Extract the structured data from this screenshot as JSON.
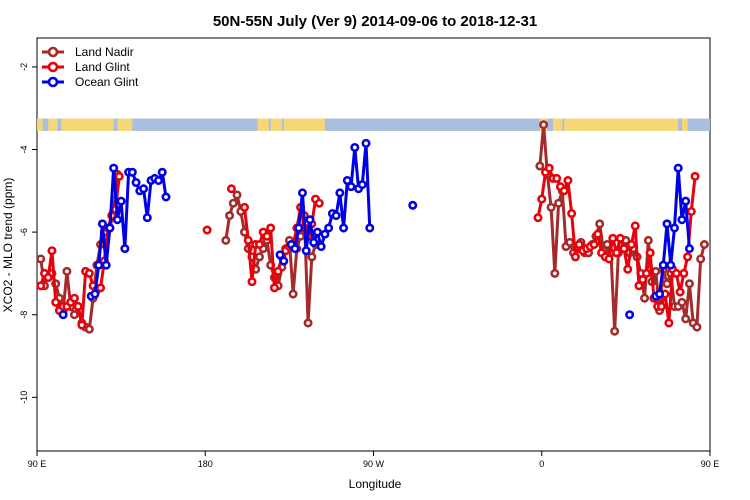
{
  "chart_data": {
    "type": "line",
    "title": "50N-55N July (Ver 9)   2014-09-06 to 2018-12-31",
    "xlabel": "Longitude",
    "ylabel": "XCO2 - MLO trend (ppm)",
    "xlim": [
      90,
      450
    ],
    "ylim": [
      -11.3,
      -1.3
    ],
    "xticks": [
      {
        "value": 90,
        "label": "90 E"
      },
      {
        "value": 180,
        "label": "180"
      },
      {
        "value": 270,
        "label": "90 W"
      },
      {
        "value": 360,
        "label": "0"
      },
      {
        "value": 450,
        "label": "90 E"
      },
      {
        "value": 540,
        "label": "180"
      }
    ],
    "yticks": [
      {
        "value": -2,
        "label": "-2"
      },
      {
        "value": -4,
        "label": "-4"
      },
      {
        "value": -6,
        "label": "-6"
      },
      {
        "value": -8,
        "label": "-8"
      },
      {
        "value": -10,
        "label": "-10"
      }
    ],
    "legend_position": "top-left",
    "land_mask_band": {
      "y_range": [
        -3.55,
        -3.25
      ],
      "land_color": "#f5d77a",
      "ocean_color": "#a9bfde"
    },
    "series": [
      {
        "name": "Land Nadir",
        "color": "#a52a2a",
        "segments": [
          [
            [
              92,
              -6.65
            ],
            [
              94,
              -7.3
            ],
            [
              96,
              -7.05
            ],
            [
              98,
              -7.0
            ],
            [
              100,
              -7.25
            ],
            [
              102,
              -7.6
            ],
            [
              104,
              -7.9
            ],
            [
              106,
              -6.95
            ],
            [
              108,
              -7.8
            ],
            [
              110,
              -8.0
            ],
            [
              112,
              -7.8
            ],
            [
              114,
              -8.2
            ],
            [
              116,
              -8.3
            ],
            [
              118,
              -8.35
            ],
            [
              120,
              -7.6
            ],
            [
              122,
              -6.8
            ],
            [
              124,
              -6.3
            ],
            [
              126,
              -6.0
            ]
          ],
          [
            [
              129,
              -5.9
            ],
            [
              131,
              -5.5
            ],
            [
              133,
              -4.6
            ]
          ],
          [
            [
              191,
              -6.2
            ],
            [
              193,
              -5.6
            ],
            [
              195,
              -5.3
            ],
            [
              197,
              -5.1
            ],
            [
              199,
              -5.5
            ],
            [
              201,
              -6.0
            ],
            [
              203,
              -6.4
            ],
            [
              205,
              -6.6
            ],
            [
              207,
              -6.9
            ],
            [
              209,
              -6.6
            ],
            [
              211,
              -6.4
            ],
            [
              213,
              -6.2
            ],
            [
              215,
              -6.8
            ],
            [
              217,
              -7.1
            ],
            [
              219,
              -7.3
            ],
            [
              221,
              -6.85
            ],
            [
              223,
              -6.4
            ],
            [
              225,
              -6.2
            ],
            [
              227,
              -7.5
            ],
            [
              229,
              -6.4
            ],
            [
              231,
              -6.1
            ],
            [
              233,
              -5.6
            ],
            [
              235,
              -8.2
            ],
            [
              237,
              -6.6
            ],
            [
              239,
              -6.3
            ]
          ],
          [
            [
              359,
              -4.4
            ],
            [
              361,
              -3.4
            ],
            [
              363,
              -4.6
            ],
            [
              365,
              -5.4
            ],
            [
              367,
              -7.0
            ],
            [
              369,
              -5.3
            ],
            [
              371,
              -5.0
            ],
            [
              373,
              -6.35
            ],
            [
              375,
              -6.25
            ],
            [
              377,
              -6.5
            ],
            [
              379,
              -6.4
            ],
            [
              381,
              -6.25
            ],
            [
              383,
              -6.5
            ],
            [
              385,
              -6.5
            ],
            [
              387,
              -6.3
            ],
            [
              389,
              -6.1
            ],
            [
              391,
              -5.8
            ],
            [
              393,
              -6.45
            ],
            [
              395,
              -6.3
            ],
            [
              397,
              -6.5
            ],
            [
              399,
              -8.4
            ],
            [
              401,
              -6.5
            ],
            [
              403,
              -6.3
            ],
            [
              405,
              -6.2
            ],
            [
              407,
              -6.5
            ],
            [
              409,
              -6.4
            ],
            [
              411,
              -6.6
            ],
            [
              413,
              -7.0
            ],
            [
              415,
              -7.6
            ],
            [
              417,
              -6.2
            ],
            [
              419,
              -7.2
            ],
            [
              421,
              -6.95
            ],
            [
              423,
              -7.9
            ],
            [
              425,
              -6.9
            ],
            [
              427,
              -7.25
            ],
            [
              429,
              -7.0
            ],
            [
              431,
              -7.8
            ],
            [
              433,
              -7.8
            ],
            [
              435,
              -7.7
            ],
            [
              437,
              -8.1
            ],
            [
              439,
              -7.25
            ],
            [
              441,
              -8.2
            ],
            [
              443,
              -8.3
            ],
            [
              445,
              -6.65
            ],
            [
              447,
              -6.3
            ]
          ]
        ]
      },
      {
        "name": "Land Glint",
        "color": "#e8000b",
        "segments": [
          [
            [
              92,
              -7.3
            ],
            [
              94,
              -7.0
            ],
            [
              96,
              -7.1
            ],
            [
              98,
              -6.45
            ],
            [
              100,
              -7.7
            ],
            [
              102,
              -7.9
            ],
            [
              104,
              -7.8
            ],
            [
              106,
              -7.8
            ],
            [
              108,
              -7.7
            ],
            [
              110,
              -7.6
            ],
            [
              112,
              -7.8
            ],
            [
              114,
              -8.25
            ],
            [
              116,
              -6.95
            ],
            [
              118,
              -7.0
            ],
            [
              120,
              -7.3
            ],
            [
              122,
              -7.4
            ],
            [
              124,
              -7.35
            ],
            [
              126,
              -6.7
            ],
            [
              128,
              -5.9
            ],
            [
              130,
              -5.6
            ],
            [
              132,
              -5.45
            ],
            [
              134,
              -4.65
            ]
          ],
          [
            [
              181,
              -5.95
            ]
          ],
          [
            [
              194,
              -4.95
            ]
          ],
          [
            [
              201,
              -5.4
            ],
            [
              203,
              -6.2
            ],
            [
              205,
              -7.2
            ],
            [
              207,
              -6.3
            ],
            [
              209,
              -6.3
            ],
            [
              211,
              -6.0
            ],
            [
              213,
              -6.1
            ],
            [
              215,
              -5.9
            ],
            [
              217,
              -7.35
            ],
            [
              219,
              -6.95
            ],
            [
              221,
              -6.6
            ],
            [
              223,
              -6.45
            ],
            [
              225,
              -6.35
            ],
            [
              227,
              -6.3
            ],
            [
              229,
              -5.9
            ],
            [
              231,
              -5.4
            ],
            [
              233,
              -5.9
            ],
            [
              235,
              -6.1
            ],
            [
              237,
              -5.8
            ],
            [
              239,
              -5.2
            ],
            [
              241,
              -5.3
            ]
          ],
          [
            [
              358,
              -5.65
            ],
            [
              360,
              -5.2
            ],
            [
              362,
              -4.55
            ],
            [
              364,
              -4.45
            ],
            [
              366,
              -4.7
            ],
            [
              368,
              -4.7
            ],
            [
              370,
              -4.9
            ],
            [
              372,
              -5.0
            ],
            [
              374,
              -4.75
            ],
            [
              376,
              -5.55
            ],
            [
              378,
              -6.6
            ],
            [
              380,
              -6.3
            ],
            [
              382,
              -6.45
            ],
            [
              384,
              -6.4
            ],
            [
              386,
              -6.35
            ],
            [
              388,
              -6.3
            ],
            [
              390,
              -6.05
            ],
            [
              392,
              -6.5
            ],
            [
              394,
              -6.6
            ],
            [
              396,
              -6.65
            ],
            [
              398,
              -6.15
            ],
            [
              400,
              -6.5
            ],
            [
              402,
              -6.15
            ],
            [
              404,
              -6.4
            ],
            [
              406,
              -6.9
            ],
            [
              408,
              -6.3
            ],
            [
              410,
              -5.85
            ],
            [
              412,
              -7.3
            ],
            [
              414,
              -7.15
            ],
            [
              416,
              -7.0
            ],
            [
              418,
              -6.5
            ],
            [
              420,
              -7.6
            ],
            [
              422,
              -7.8
            ],
            [
              424,
              -7.8
            ],
            [
              426,
              -7.5
            ],
            [
              428,
              -8.2
            ],
            [
              430,
              -6.9
            ],
            [
              432,
              -7.0
            ],
            [
              434,
              -7.45
            ],
            [
              436,
              -7.0
            ],
            [
              438,
              -6.6
            ],
            [
              440,
              -5.5
            ],
            [
              442,
              -4.65
            ]
          ]
        ]
      },
      {
        "name": "Ocean Glint",
        "color": "#0000e6",
        "segments": [
          [
            [
              104,
              -8.0
            ]
          ],
          [
            [
              119,
              -7.55
            ],
            [
              121,
              -7.5
            ],
            [
              123,
              -6.8
            ],
            [
              125,
              -5.8
            ],
            [
              127,
              -6.8
            ],
            [
              129,
              -5.9
            ],
            [
              131,
              -4.45
            ],
            [
              133,
              -5.7
            ],
            [
              135,
              -5.25
            ],
            [
              137,
              -6.4
            ],
            [
              139,
              -4.55
            ],
            [
              141,
              -4.55
            ],
            [
              143,
              -4.8
            ],
            [
              145,
              -5.0
            ],
            [
              147,
              -4.95
            ],
            [
              149,
              -5.65
            ],
            [
              151,
              -4.75
            ],
            [
              153,
              -4.7
            ],
            [
              155,
              -4.75
            ],
            [
              157,
              -4.55
            ],
            [
              159,
              -5.15
            ]
          ],
          [
            [
              220,
              -6.55
            ],
            [
              222,
              -6.7
            ]
          ],
          [
            [
              226,
              -6.3
            ],
            [
              228,
              -6.4
            ],
            [
              230,
              -5.9
            ],
            [
              232,
              -5.05
            ],
            [
              234,
              -6.45
            ],
            [
              236,
              -5.7
            ],
            [
              238,
              -6.25
            ],
            [
              240,
              -6.0
            ],
            [
              242,
              -6.35
            ],
            [
              244,
              -6.05
            ],
            [
              246,
              -5.9
            ],
            [
              248,
              -5.55
            ],
            [
              250,
              -5.6
            ],
            [
              252,
              -5.05
            ],
            [
              254,
              -5.9
            ],
            [
              256,
              -4.75
            ],
            [
              258,
              -4.9
            ],
            [
              260,
              -3.95
            ],
            [
              262,
              -4.95
            ],
            [
              264,
              -4.85
            ],
            [
              266,
              -3.85
            ],
            [
              268,
              -5.9
            ]
          ],
          [
            [
              291,
              -5.35
            ]
          ],
          [
            [
              407,
              -8.0
            ]
          ],
          [
            [
              421,
              -7.55
            ],
            [
              423,
              -7.5
            ],
            [
              425,
              -6.8
            ],
            [
              427,
              -5.8
            ],
            [
              429,
              -6.8
            ],
            [
              431,
              -5.9
            ],
            [
              433,
              -4.45
            ],
            [
              435,
              -5.7
            ],
            [
              437,
              -5.25
            ],
            [
              439,
              -6.4
            ]
          ]
        ]
      }
    ]
  }
}
